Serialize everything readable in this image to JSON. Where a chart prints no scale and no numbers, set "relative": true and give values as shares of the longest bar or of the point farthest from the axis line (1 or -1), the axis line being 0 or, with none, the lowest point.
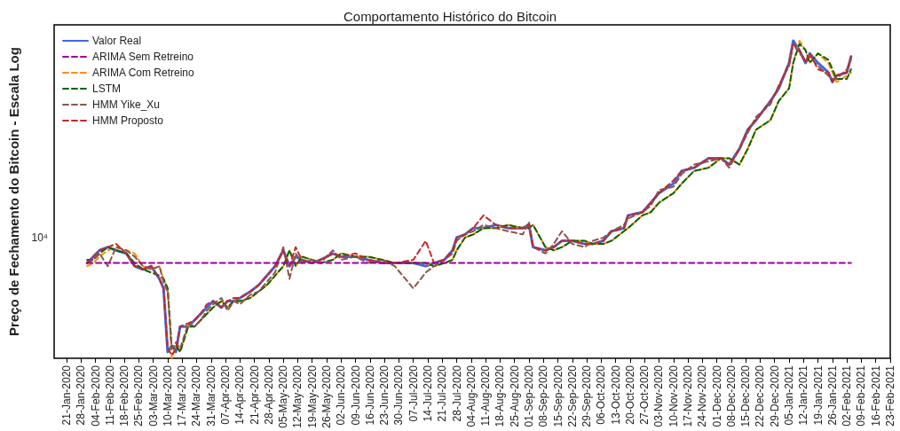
{
  "chart_data": {
    "type": "line",
    "title": "Comportamento Histórico do Bitcoin",
    "ylabel": "Preço de Fechamento do Bitcoin - Escala Log",
    "relative": true,
    "grid": false,
    "legend": "top left",
    "marker": "none",
    "annotations": [
      "10⁴"
    ],
    "xlim": [
      "2020-01-15",
      "2021-02-23"
    ],
    "xticks": [
      {
        "value": "2020-01-21",
        "label": "21-Jan-2020"
      },
      {
        "value": "2020-01-28",
        "label": "28-Jan-2020"
      },
      {
        "value": "2020-02-04",
        "label": "04-Feb-2020"
      },
      {
        "value": "2020-02-11",
        "label": "11-Feb-2020"
      },
      {
        "value": "2020-02-18",
        "label": "18-Feb-2020"
      },
      {
        "value": "2020-02-25",
        "label": "25-Feb-2020"
      },
      {
        "value": "2020-03-03",
        "label": "03-Mar-2020"
      },
      {
        "value": "2020-03-10",
        "label": "10-Mar-2020"
      },
      {
        "value": "2020-03-17",
        "label": "17-Mar-2020"
      },
      {
        "value": "2020-03-24",
        "label": "24-Mar-2020"
      },
      {
        "value": "2020-03-31",
        "label": "31-Mar-2020"
      },
      {
        "value": "2020-04-07",
        "label": "07-Apr-2020"
      },
      {
        "value": "2020-04-14",
        "label": "14-Apr-2020"
      },
      {
        "value": "2020-04-21",
        "label": "21-Apr-2020"
      },
      {
        "value": "2020-04-28",
        "label": "28-Apr-2020"
      },
      {
        "value": "2020-05-05",
        "label": "05-May-2020"
      },
      {
        "value": "2020-05-12",
        "label": "12-May-2020"
      },
      {
        "value": "2020-05-19",
        "label": "19-May-2020"
      },
      {
        "value": "2020-05-26",
        "label": "26-May-2020"
      },
      {
        "value": "2020-06-02",
        "label": "02-Jun-2020"
      },
      {
        "value": "2020-06-09",
        "label": "09-Jun-2020"
      },
      {
        "value": "2020-06-16",
        "label": "16-Jun-2020"
      },
      {
        "value": "2020-06-23",
        "label": "23-Jun-2020"
      },
      {
        "value": "2020-06-30",
        "label": "30-Jun-2020"
      },
      {
        "value": "2020-07-07",
        "label": "07-Jul-2020"
      },
      {
        "value": "2020-07-14",
        "label": "14-Jul-2020"
      },
      {
        "value": "2020-07-21",
        "label": "21-Jul-2020"
      },
      {
        "value": "2020-07-28",
        "label": "28-Jul-2020"
      },
      {
        "value": "2020-08-04",
        "label": "04-Aug-2020"
      },
      {
        "value": "2020-08-11",
        "label": "11-Aug-2020"
      },
      {
        "value": "2020-08-18",
        "label": "18-Aug-2020"
      },
      {
        "value": "2020-08-25",
        "label": "25-Aug-2020"
      },
      {
        "value": "2020-09-01",
        "label": "01-Sep-2020"
      },
      {
        "value": "2020-09-08",
        "label": "08-Sep-2020"
      },
      {
        "value": "2020-09-15",
        "label": "15-Sep-2020"
      },
      {
        "value": "2020-09-22",
        "label": "22-Sep-2020"
      },
      {
        "value": "2020-09-29",
        "label": "29-Sep-2020"
      },
      {
        "value": "2020-10-06",
        "label": "06-Oct-2020"
      },
      {
        "value": "2020-10-13",
        "label": "13-Oct-2020"
      },
      {
        "value": "2020-10-20",
        "label": "20-Oct-2020"
      },
      {
        "value": "2020-10-27",
        "label": "27-Oct-2020"
      },
      {
        "value": "2020-11-03",
        "label": "03-Nov-2020"
      },
      {
        "value": "2020-11-10",
        "label": "10-Nov-2020"
      },
      {
        "value": "2020-11-17",
        "label": "17-Nov-2020"
      },
      {
        "value": "2020-11-24",
        "label": "24-Nov-2020"
      },
      {
        "value": "2020-12-01",
        "label": "01-Dec-2020"
      },
      {
        "value": "2020-12-08",
        "label": "08-Dec-2020"
      },
      {
        "value": "2020-12-15",
        "label": "15-Dec-2020"
      },
      {
        "value": "2020-12-22",
        "label": "22-Dec-2020"
      },
      {
        "value": "2020-12-29",
        "label": "29-Dec-2020"
      },
      {
        "value": "2021-01-05",
        "label": "05-Jan-2021"
      },
      {
        "value": "2021-01-12",
        "label": "12-Jan-2021"
      },
      {
        "value": "2021-01-19",
        "label": "19-Jan-2021"
      },
      {
        "value": "2021-01-26",
        "label": "26-Jan-2021"
      },
      {
        "value": "2021-02-02",
        "label": "02-Feb-2021"
      },
      {
        "value": "2021-02-09",
        "label": "09-Feb-2021"
      },
      {
        "value": "2021-02-16",
        "label": "16-Feb-2021"
      },
      {
        "value": "2021-02-23",
        "label": "23-Feb-2021"
      }
    ],
    "x": [
      "2020-01-31",
      "2020-02-03",
      "2020-02-06",
      "2020-02-10",
      "2020-02-14",
      "2020-02-19",
      "2020-02-23",
      "2020-02-27",
      "2020-03-02",
      "2020-03-06",
      "2020-03-08",
      "2020-03-10",
      "2020-03-12",
      "2020-03-14",
      "2020-03-16",
      "2020-03-20",
      "2020-03-23",
      "2020-03-26",
      "2020-03-29",
      "2020-04-01",
      "2020-04-05",
      "2020-04-08",
      "2020-04-11",
      "2020-04-14",
      "2020-04-19",
      "2020-04-23",
      "2020-04-27",
      "2020-05-01",
      "2020-05-05",
      "2020-05-08",
      "2020-05-11",
      "2020-05-14",
      "2020-05-19",
      "2020-05-23",
      "2020-05-29",
      "2020-06-02",
      "2020-06-09",
      "2020-06-15",
      "2020-06-22",
      "2020-06-28",
      "2020-07-07",
      "2020-07-13",
      "2020-07-17",
      "2020-07-22",
      "2020-07-26",
      "2020-07-28",
      "2020-08-01",
      "2020-08-05",
      "2020-08-10",
      "2020-08-16",
      "2020-08-22",
      "2020-08-29",
      "2020-09-01",
      "2020-09-03",
      "2020-09-09",
      "2020-09-13",
      "2020-09-17",
      "2020-09-22",
      "2020-09-28",
      "2020-10-02",
      "2020-10-07",
      "2020-10-11",
      "2020-10-17",
      "2020-10-19",
      "2020-10-26",
      "2020-10-30",
      "2020-11-03",
      "2020-11-10",
      "2020-11-14",
      "2020-11-20",
      "2020-11-27",
      "2020-12-03",
      "2020-12-07",
      "2020-12-12",
      "2020-12-16",
      "2020-12-20",
      "2020-12-27",
      "2020-12-31",
      "2021-01-05",
      "2021-01-07",
      "2021-01-10",
      "2021-01-13",
      "2021-01-15",
      "2021-01-19",
      "2021-01-24",
      "2021-01-26",
      "2021-01-28",
      "2021-02-02",
      "2021-02-04"
    ],
    "series": [
      {
        "name": "Valor Real",
        "color": "#4169e1",
        "line_style": "solid",
        "values": [
          0.3,
          0.32,
          0.34,
          0.35,
          0.34,
          0.33,
          0.29,
          0.28,
          0.29,
          0.25,
          0.22,
          0.02,
          0.04,
          0.02,
          0.1,
          0.1,
          0.12,
          0.14,
          0.16,
          0.18,
          0.16,
          0.18,
          0.18,
          0.19,
          0.21,
          0.23,
          0.26,
          0.29,
          0.34,
          0.29,
          0.32,
          0.31,
          0.3,
          0.31,
          0.33,
          0.32,
          0.32,
          0.31,
          0.3,
          0.3,
          0.3,
          0.29,
          0.3,
          0.31,
          0.34,
          0.38,
          0.39,
          0.41,
          0.41,
          0.42,
          0.41,
          0.41,
          0.42,
          0.35,
          0.34,
          0.35,
          0.37,
          0.37,
          0.36,
          0.36,
          0.37,
          0.4,
          0.41,
          0.45,
          0.46,
          0.49,
          0.52,
          0.55,
          0.59,
          0.6,
          0.63,
          0.63,
          0.61,
          0.66,
          0.72,
          0.75,
          0.81,
          0.85,
          0.93,
          1.0,
          0.97,
          0.93,
          0.96,
          0.93,
          0.9,
          0.87,
          0.89,
          0.9,
          0.95
        ]
      },
      {
        "name": "ARIMA Sem Retreino",
        "color": "#9b009b",
        "line_style": "dashed",
        "x": [
          "2020-01-31",
          "2021-02-04"
        ],
        "values": [
          0.3,
          0.3
        ]
      },
      {
        "name": "ARIMA Com Retreino",
        "color": "#ff8c00",
        "line_style": "dashed",
        "values": [
          0.29,
          0.3,
          0.32,
          0.34,
          0.35,
          0.34,
          0.33,
          0.29,
          0.28,
          0.29,
          0.25,
          0.22,
          0.0,
          0.04,
          0.02,
          0.1,
          0.1,
          0.12,
          0.14,
          0.16,
          0.18,
          0.16,
          0.18,
          0.18,
          0.19,
          0.21,
          0.23,
          0.26,
          0.29,
          0.34,
          0.29,
          0.32,
          0.31,
          0.3,
          0.31,
          0.33,
          0.32,
          0.32,
          0.31,
          0.3,
          0.3,
          0.3,
          0.29,
          0.3,
          0.31,
          0.34,
          0.38,
          0.39,
          0.41,
          0.41,
          0.42,
          0.41,
          0.41,
          0.42,
          0.35,
          0.34,
          0.35,
          0.37,
          0.37,
          0.36,
          0.36,
          0.37,
          0.4,
          0.41,
          0.45,
          0.46,
          0.49,
          0.52,
          0.55,
          0.59,
          0.6,
          0.63,
          0.63,
          0.61,
          0.66,
          0.72,
          0.75,
          0.81,
          0.85,
          0.93,
          1.0,
          0.97,
          0.93,
          0.96,
          0.93,
          0.9,
          0.87,
          0.89,
          0.9
        ]
      },
      {
        "name": "LSTM",
        "color": "#006400",
        "line_style": "dashed",
        "values": [
          0.31,
          0.31,
          0.33,
          0.35,
          0.34,
          0.33,
          0.3,
          0.28,
          0.27,
          0.26,
          0.25,
          0.22,
          0.03,
          0.04,
          0.02,
          0.1,
          0.1,
          0.12,
          0.14,
          0.16,
          0.18,
          0.16,
          0.18,
          0.18,
          0.19,
          0.21,
          0.23,
          0.26,
          0.29,
          0.34,
          0.29,
          0.32,
          0.31,
          0.3,
          0.31,
          0.33,
          0.32,
          0.32,
          0.31,
          0.3,
          0.3,
          0.3,
          0.29,
          0.3,
          0.31,
          0.34,
          0.38,
          0.39,
          0.41,
          0.41,
          0.42,
          0.41,
          0.41,
          0.42,
          0.35,
          0.34,
          0.35,
          0.37,
          0.37,
          0.36,
          0.36,
          0.37,
          0.4,
          0.41,
          0.45,
          0.46,
          0.49,
          0.52,
          0.55,
          0.59,
          0.6,
          0.63,
          0.63,
          0.61,
          0.66,
          0.72,
          0.75,
          0.81,
          0.85,
          0.93,
          0.99,
          0.97,
          0.93,
          0.96,
          0.94,
          0.91,
          0.88,
          0.88,
          0.91
        ]
      },
      {
        "name": "HMM Yike_Xu",
        "color": "#8c564b",
        "line_style": "dashed",
        "values": [
          0.3,
          0.31,
          0.33,
          0.29,
          0.35,
          0.34,
          0.32,
          0.29,
          0.28,
          0.29,
          0.24,
          0.21,
          0.03,
          0.05,
          0.03,
          0.11,
          0.1,
          0.12,
          0.15,
          0.17,
          0.19,
          0.15,
          0.18,
          0.17,
          0.2,
          0.21,
          0.24,
          0.27,
          0.35,
          0.25,
          0.33,
          0.3,
          0.31,
          0.3,
          0.34,
          0.31,
          0.32,
          0.3,
          0.31,
          0.29,
          0.22,
          0.27,
          0.29,
          0.31,
          0.33,
          0.37,
          0.39,
          0.4,
          0.42,
          0.41,
          0.4,
          0.39,
          0.43,
          0.35,
          0.33,
          0.36,
          0.4,
          0.36,
          0.35,
          0.37,
          0.38,
          0.4,
          0.42,
          0.44,
          0.46,
          0.48,
          0.53,
          0.54,
          0.58,
          0.61,
          0.62,
          0.63,
          0.6,
          0.66,
          0.71,
          0.76,
          0.8,
          0.86,
          0.92,
          0.99,
          0.96,
          0.94,
          0.95,
          0.92,
          0.89,
          0.88,
          0.88,
          0.91,
          0.94
        ]
      },
      {
        "name": "HMM Proposto",
        "color": "#c62828",
        "line_style": "dashed",
        "values": [
          0.3,
          0.32,
          0.34,
          0.35,
          0.36,
          0.33,
          0.29,
          0.28,
          0.29,
          0.25,
          0.22,
          0.03,
          0.01,
          0.03,
          0.1,
          0.11,
          0.12,
          0.14,
          0.17,
          0.18,
          0.16,
          0.18,
          0.19,
          0.19,
          0.21,
          0.23,
          0.26,
          0.29,
          0.34,
          0.29,
          0.35,
          0.31,
          0.3,
          0.31,
          0.33,
          0.32,
          0.33,
          0.31,
          0.3,
          0.3,
          0.31,
          0.37,
          0.3,
          0.31,
          0.34,
          0.38,
          0.39,
          0.41,
          0.45,
          0.42,
          0.41,
          0.41,
          0.42,
          0.35,
          0.34,
          0.35,
          0.37,
          0.37,
          0.36,
          0.36,
          0.37,
          0.4,
          0.41,
          0.45,
          0.46,
          0.49,
          0.52,
          0.56,
          0.59,
          0.6,
          0.63,
          0.63,
          0.61,
          0.66,
          0.72,
          0.75,
          0.81,
          0.85,
          0.93,
          0.99,
          0.97,
          0.93,
          0.96,
          0.91,
          0.9,
          0.87,
          0.89,
          0.9,
          0.95
        ]
      }
    ]
  }
}
